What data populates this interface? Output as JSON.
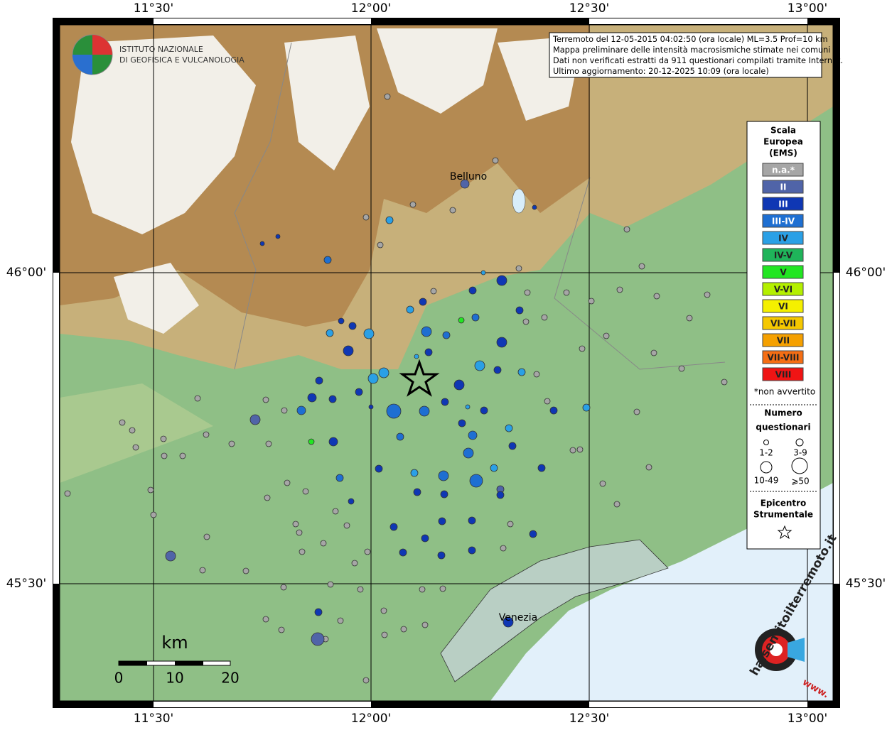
{
  "header": {
    "institute": [
      "ISTITUTO NAZIONALE",
      "DI GEOFISICA E VULCANOLOGIA"
    ]
  },
  "info_box": [
    "Terremoto del 12-05-2015 04:02:50 (ora locale) ML=3.5 Prof=10 km",
    "Mappa preliminare delle intensità macrosismiche stimate nei comuni",
    "Dati non verificati estratti da 911 questionari compilati tramite Internet.",
    "Ultimo aggiornamento: 20-12-2025 10:09 (ora locale)"
  ],
  "map": {
    "lon_labels": [
      "11°30'",
      "12°00'",
      "12°30'",
      "13°00'"
    ],
    "lat_labels": [
      "46°00'",
      "45°30'"
    ],
    "places": [
      "Belluno",
      "Venezia"
    ]
  },
  "legend": {
    "title": [
      "Scala",
      "Europea",
      "(EMS)"
    ],
    "classes": [
      {
        "label": "n.a.*",
        "color": "#a6a6a6"
      },
      {
        "label": "II",
        "color": "#5064a8"
      },
      {
        "label": "III",
        "color": "#0f37b4"
      },
      {
        "label": "III-IV",
        "color": "#1e6fd2"
      },
      {
        "label": "IV",
        "color": "#2aa0e6"
      },
      {
        "label": "IV-V",
        "color": "#1fb45a"
      },
      {
        "label": "V",
        "color": "#22e622"
      },
      {
        "label": "V-VI",
        "color": "#b4f000"
      },
      {
        "label": "VI",
        "color": "#f5f000"
      },
      {
        "label": "VI-VII",
        "color": "#f5c800"
      },
      {
        "label": "VII",
        "color": "#f5a000"
      },
      {
        "label": "VII-VIII",
        "color": "#f56e14"
      },
      {
        "label": "VIII",
        "color": "#f01414"
      }
    ],
    "note": "*non avvertito",
    "count_title": [
      "Numero",
      "questionari"
    ],
    "sizes": [
      "1-2",
      "3-9",
      "10-49",
      "⩾50"
    ],
    "epicenter_title": [
      "Epicentro",
      "Strumentale"
    ]
  },
  "scale_bar": {
    "unit": "km",
    "labels": [
      "0",
      "10",
      "20"
    ]
  },
  "logo": {
    "main": "haisentitoilterremoto.it",
    "prefix": "www."
  }
}
